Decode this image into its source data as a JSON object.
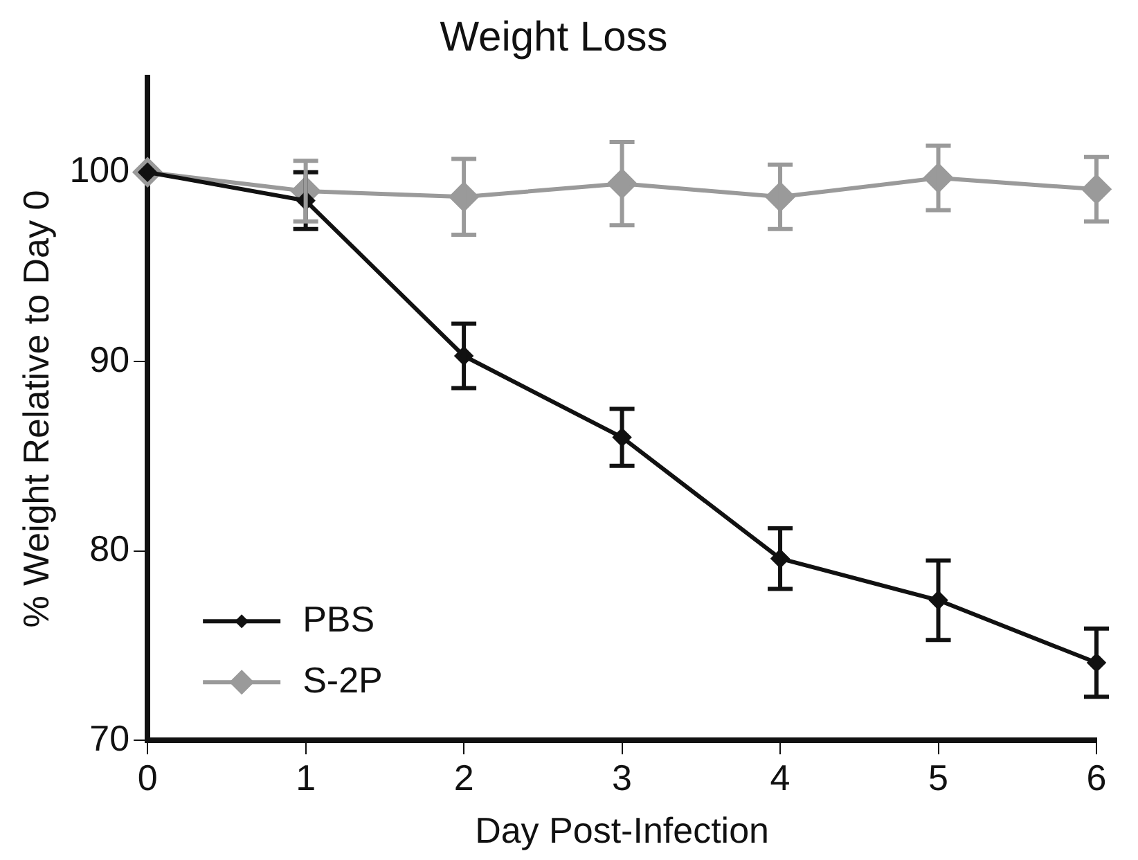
{
  "chart_data": {
    "type": "line",
    "title": "Weight Loss",
    "xlabel": "Day Post-Infection",
    "ylabel": "% Weight Relative to Day 0",
    "x": [
      0,
      1,
      2,
      3,
      4,
      5,
      6
    ],
    "series": [
      {
        "name": "PBS",
        "color": "#111111",
        "values": [
          100,
          98.5,
          90.3,
          86,
          79.6,
          77.4,
          74.1
        ],
        "errors": [
          null,
          1.5,
          1.7,
          1.5,
          1.6,
          2.1,
          1.8
        ]
      },
      {
        "name": "S-2P",
        "color": "#9a9a9a",
        "values": [
          100,
          99,
          98.7,
          99.4,
          98.7,
          99.7,
          99.1
        ],
        "errors": [
          null,
          1.6,
          2,
          2.2,
          1.7,
          1.7,
          1.7
        ]
      }
    ],
    "xlim": [
      0,
      6
    ],
    "xticks": [
      0,
      1,
      2,
      3,
      4,
      5,
      6
    ],
    "ylim": [
      70,
      105
    ],
    "yticks": [
      70,
      80,
      90,
      100
    ],
    "grid": false,
    "legend": "bottom left",
    "marker": "diamond",
    "line_style": "solid"
  }
}
